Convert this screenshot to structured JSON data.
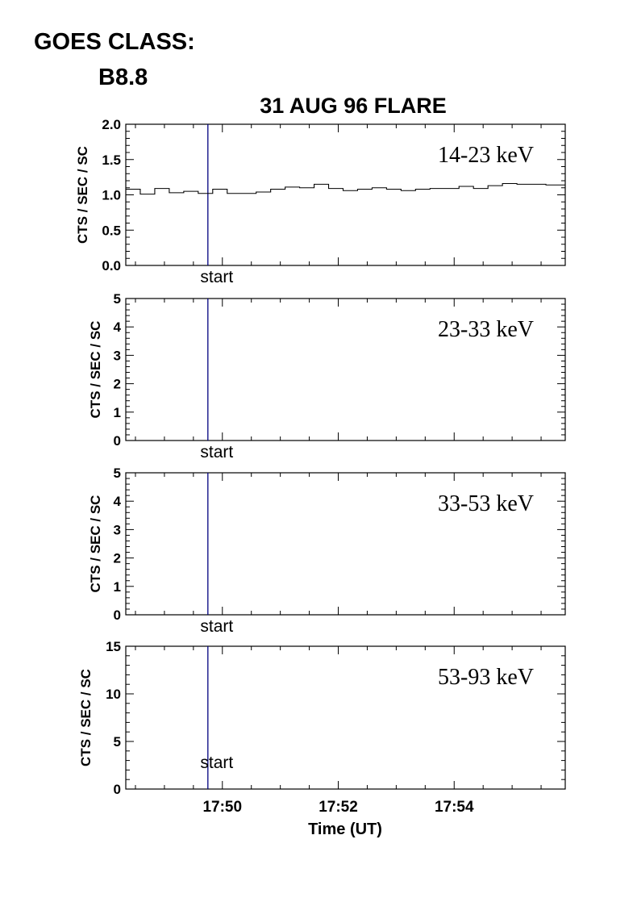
{
  "header": {
    "goes_class_label": "GOES CLASS:",
    "goes_class_value": "B8.8"
  },
  "chart_data": [
    {
      "type": "line",
      "title": "31 AUG 96 FLARE",
      "band_label": "14-23 keV",
      "ylabel": "CTS / SEC / SC",
      "xlabel": "",
      "ylim": [
        0,
        2.0
      ],
      "yticks": [
        "0.0",
        "0.5",
        "1.0",
        "1.5",
        "2.0"
      ],
      "xlim": [
        "17:48:20",
        "17:55:55"
      ],
      "xticks": [],
      "marker": {
        "label": "start",
        "x": "17:49:45",
        "color": "#000080"
      },
      "series": [
        {
          "style": "step",
          "x": [
            "17:48:20",
            "17:48:35",
            "17:48:50",
            "17:49:05",
            "17:49:20",
            "17:49:35",
            "17:49:50",
            "17:50:05",
            "17:50:20",
            "17:50:35",
            "17:50:50",
            "17:51:05",
            "17:51:20",
            "17:51:35",
            "17:51:50",
            "17:52:05",
            "17:52:20",
            "17:52:35",
            "17:52:50",
            "17:53:05",
            "17:53:20",
            "17:53:35",
            "17:53:50",
            "17:54:05",
            "17:54:20",
            "17:54:35",
            "17:54:50",
            "17:55:05",
            "17:55:20",
            "17:55:35",
            "17:55:55"
          ],
          "values": [
            1.08,
            1.01,
            1.09,
            1.03,
            1.05,
            1.02,
            1.08,
            1.02,
            1.02,
            1.04,
            1.08,
            1.11,
            1.1,
            1.15,
            1.09,
            1.06,
            1.08,
            1.1,
            1.08,
            1.06,
            1.08,
            1.09,
            1.09,
            1.12,
            1.09,
            1.13,
            1.16,
            1.15,
            1.15,
            1.14,
            1.17
          ]
        }
      ]
    },
    {
      "type": "line",
      "band_label": "23-33 keV",
      "ylabel": "CTS / SEC / SC",
      "ylim": [
        0,
        5
      ],
      "yticks": [
        "0",
        "1",
        "2",
        "3",
        "4",
        "5"
      ],
      "xlim": [
        "17:48:20",
        "17:55:55"
      ],
      "marker": {
        "label": "start",
        "x": "17:49:45",
        "color": "#000080"
      },
      "series": []
    },
    {
      "type": "line",
      "band_label": "33-53 keV",
      "ylabel": "CTS / SEC / SC",
      "ylim": [
        0,
        5
      ],
      "yticks": [
        "0",
        "1",
        "2",
        "3",
        "4",
        "5"
      ],
      "xlim": [
        "17:48:20",
        "17:55:55"
      ],
      "marker": {
        "label": "start",
        "x": "17:49:45",
        "color": "#000080"
      },
      "series": []
    },
    {
      "type": "line",
      "band_label": "53-93 keV",
      "ylabel": "CTS / SEC / SC",
      "xlabel": "Time (UT)",
      "ylim": [
        0,
        15
      ],
      "yticks": [
        "0",
        "5",
        "10",
        "15"
      ],
      "xlim": [
        "17:48:20",
        "17:55:55"
      ],
      "xticks": [
        "17:50",
        "17:52",
        "17:54"
      ],
      "marker": {
        "label": "start",
        "x": "17:49:45",
        "color": "#000080"
      },
      "series": []
    }
  ]
}
